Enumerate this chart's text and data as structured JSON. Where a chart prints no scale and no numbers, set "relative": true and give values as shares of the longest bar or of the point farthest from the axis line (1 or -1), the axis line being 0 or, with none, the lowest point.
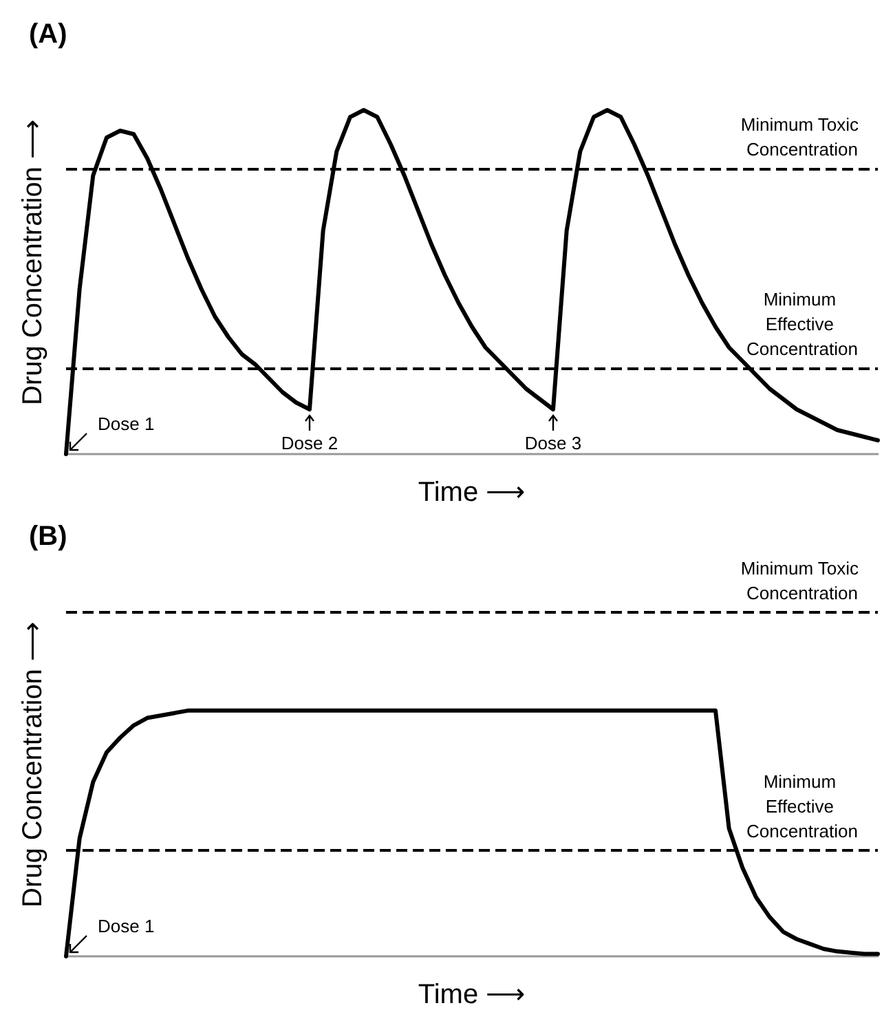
{
  "chart_data": [
    {
      "type": "line",
      "title": "(A)",
      "xlabel": "Time ⟶",
      "ylabel": "Drug Concentration ⟶",
      "relative": true,
      "marker": "none",
      "grid": false,
      "categories": [
        null,
        null,
        null,
        null,
        null,
        null,
        null,
        null,
        null,
        null,
        null,
        null,
        null,
        null,
        null,
        null,
        null,
        null,
        null,
        null,
        null,
        null,
        null,
        null,
        null,
        null,
        null,
        null,
        null,
        null,
        null,
        null,
        null,
        null,
        null,
        null,
        null,
        null,
        null,
        null,
        null,
        null,
        null,
        null,
        null,
        null,
        null,
        null,
        null,
        null,
        null,
        null,
        null,
        null,
        null,
        null,
        null,
        null,
        null,
        null,
        null
      ],
      "series": [
        {
          "color": "#000000",
          "values": [
            0,
            0.48,
            0.81,
            0.92,
            0.94,
            0.93,
            0.86,
            0.77,
            0.67,
            0.57,
            0.48,
            0.4,
            0.34,
            0.29,
            0.26,
            0.22,
            0.18,
            0.15,
            0.13,
            0.65,
            0.88,
            0.98,
            1.0,
            0.98,
            0.9,
            0.81,
            0.71,
            0.61,
            0.52,
            0.44,
            0.37,
            0.31,
            0.27,
            0.23,
            0.19,
            0.16,
            0.13,
            0.65,
            0.88,
            0.98,
            1.0,
            0.98,
            0.9,
            0.81,
            0.71,
            0.61,
            0.52,
            0.44,
            0.37,
            0.31,
            0.27,
            0.23,
            0.19,
            0.16,
            0.13,
            0.11,
            0.09,
            0.07,
            0.06,
            0.05,
            0.04
          ]
        }
      ],
      "ref_lines": [
        {
          "axis": "y",
          "value": 0.83,
          "label": "Minimum Toxic Concentration",
          "color": "#000000",
          "line_style": "dashed"
        },
        {
          "axis": "y",
          "value": 0.25,
          "label": "Minimum Effective Concentration",
          "color": "#000000",
          "line_style": "dashed"
        }
      ],
      "annotations": [
        "Dose 1",
        "Dose 2",
        "Dose 3"
      ]
    },
    {
      "type": "line",
      "title": "(B)",
      "xlabel": "Time ⟶",
      "ylabel": "Drug Concentration ⟶",
      "relative": true,
      "marker": "none",
      "grid": false,
      "categories": [
        null,
        null,
        null,
        null,
        null,
        null,
        null,
        null,
        null,
        null,
        null,
        null,
        null,
        null,
        null,
        null,
        null,
        null,
        null,
        null,
        null,
        null,
        null,
        null,
        null,
        null,
        null,
        null,
        null,
        null,
        null,
        null,
        null,
        null,
        null,
        null,
        null,
        null,
        null,
        null,
        null,
        null,
        null,
        null,
        null,
        null,
        null,
        null,
        null,
        null,
        null,
        null,
        null,
        null,
        null,
        null,
        null,
        null,
        null,
        null,
        null
      ],
      "series": [
        {
          "color": "#000000",
          "values": [
            0,
            0.48,
            0.71,
            0.83,
            0.89,
            0.94,
            0.97,
            0.98,
            0.99,
            1.0,
            1.0,
            1.0,
            1.0,
            1.0,
            1.0,
            1.0,
            1.0,
            1.0,
            1.0,
            1.0,
            1.0,
            1.0,
            1.0,
            1.0,
            1.0,
            1.0,
            1.0,
            1.0,
            1.0,
            1.0,
            1.0,
            1.0,
            1.0,
            1.0,
            1.0,
            1.0,
            1.0,
            1.0,
            1.0,
            1.0,
            1.0,
            1.0,
            1.0,
            1.0,
            1.0,
            1.0,
            1.0,
            1.0,
            1.0,
            0.52,
            0.36,
            0.24,
            0.16,
            0.1,
            0.07,
            0.05,
            0.03,
            0.02,
            0.015,
            0.01,
            0.01
          ]
        }
      ],
      "ref_lines": [
        {
          "axis": "y",
          "value": 1.4,
          "label": "Minimum Toxic Concentration",
          "color": "#000000",
          "line_style": "dashed"
        },
        {
          "axis": "y",
          "value": 0.43,
          "label": "Minimum Effective Concentration",
          "color": "#000000",
          "line_style": "dashed"
        }
      ],
      "annotations": [
        "Dose 1"
      ]
    }
  ]
}
